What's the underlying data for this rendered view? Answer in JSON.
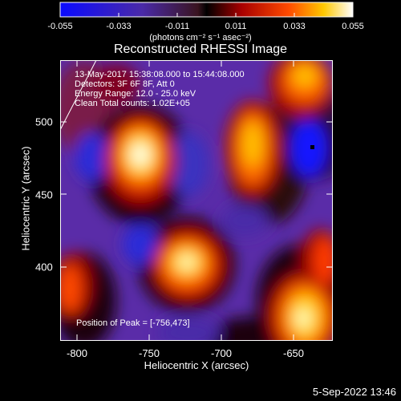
{
  "colorbar": {
    "ticks": [
      "-0.055",
      "-0.033",
      "-0.011",
      "0.011",
      "0.033",
      "0.055"
    ],
    "units": "(photons cm⁻² s⁻¹ asec⁻²)"
  },
  "title": "Reconstructed RHESSI Image",
  "info": {
    "line1": "13-May-2017 15:38:08.000 to 15:44:08.000",
    "line2": "Detectors: 3F 6F 8F, Att 0",
    "line3": "Energy Range: 12.0 - 25.0 keV",
    "line4": "Clean    Total counts: 1.02E+05"
  },
  "axes": {
    "xlabel": "Heliocentric X (arcsec)",
    "ylabel": "Heliocentric Y (arcsec)",
    "xticks": [
      "-800",
      "-750",
      "-700",
      "-650"
    ],
    "yticks": [
      "500",
      "450",
      "400"
    ]
  },
  "peak_text": "Position of Peak = [-756,473]",
  "date": "5-Sep-2022 13:46",
  "colors": {
    "accent": "#ffffff",
    "bg": "#000000"
  }
}
